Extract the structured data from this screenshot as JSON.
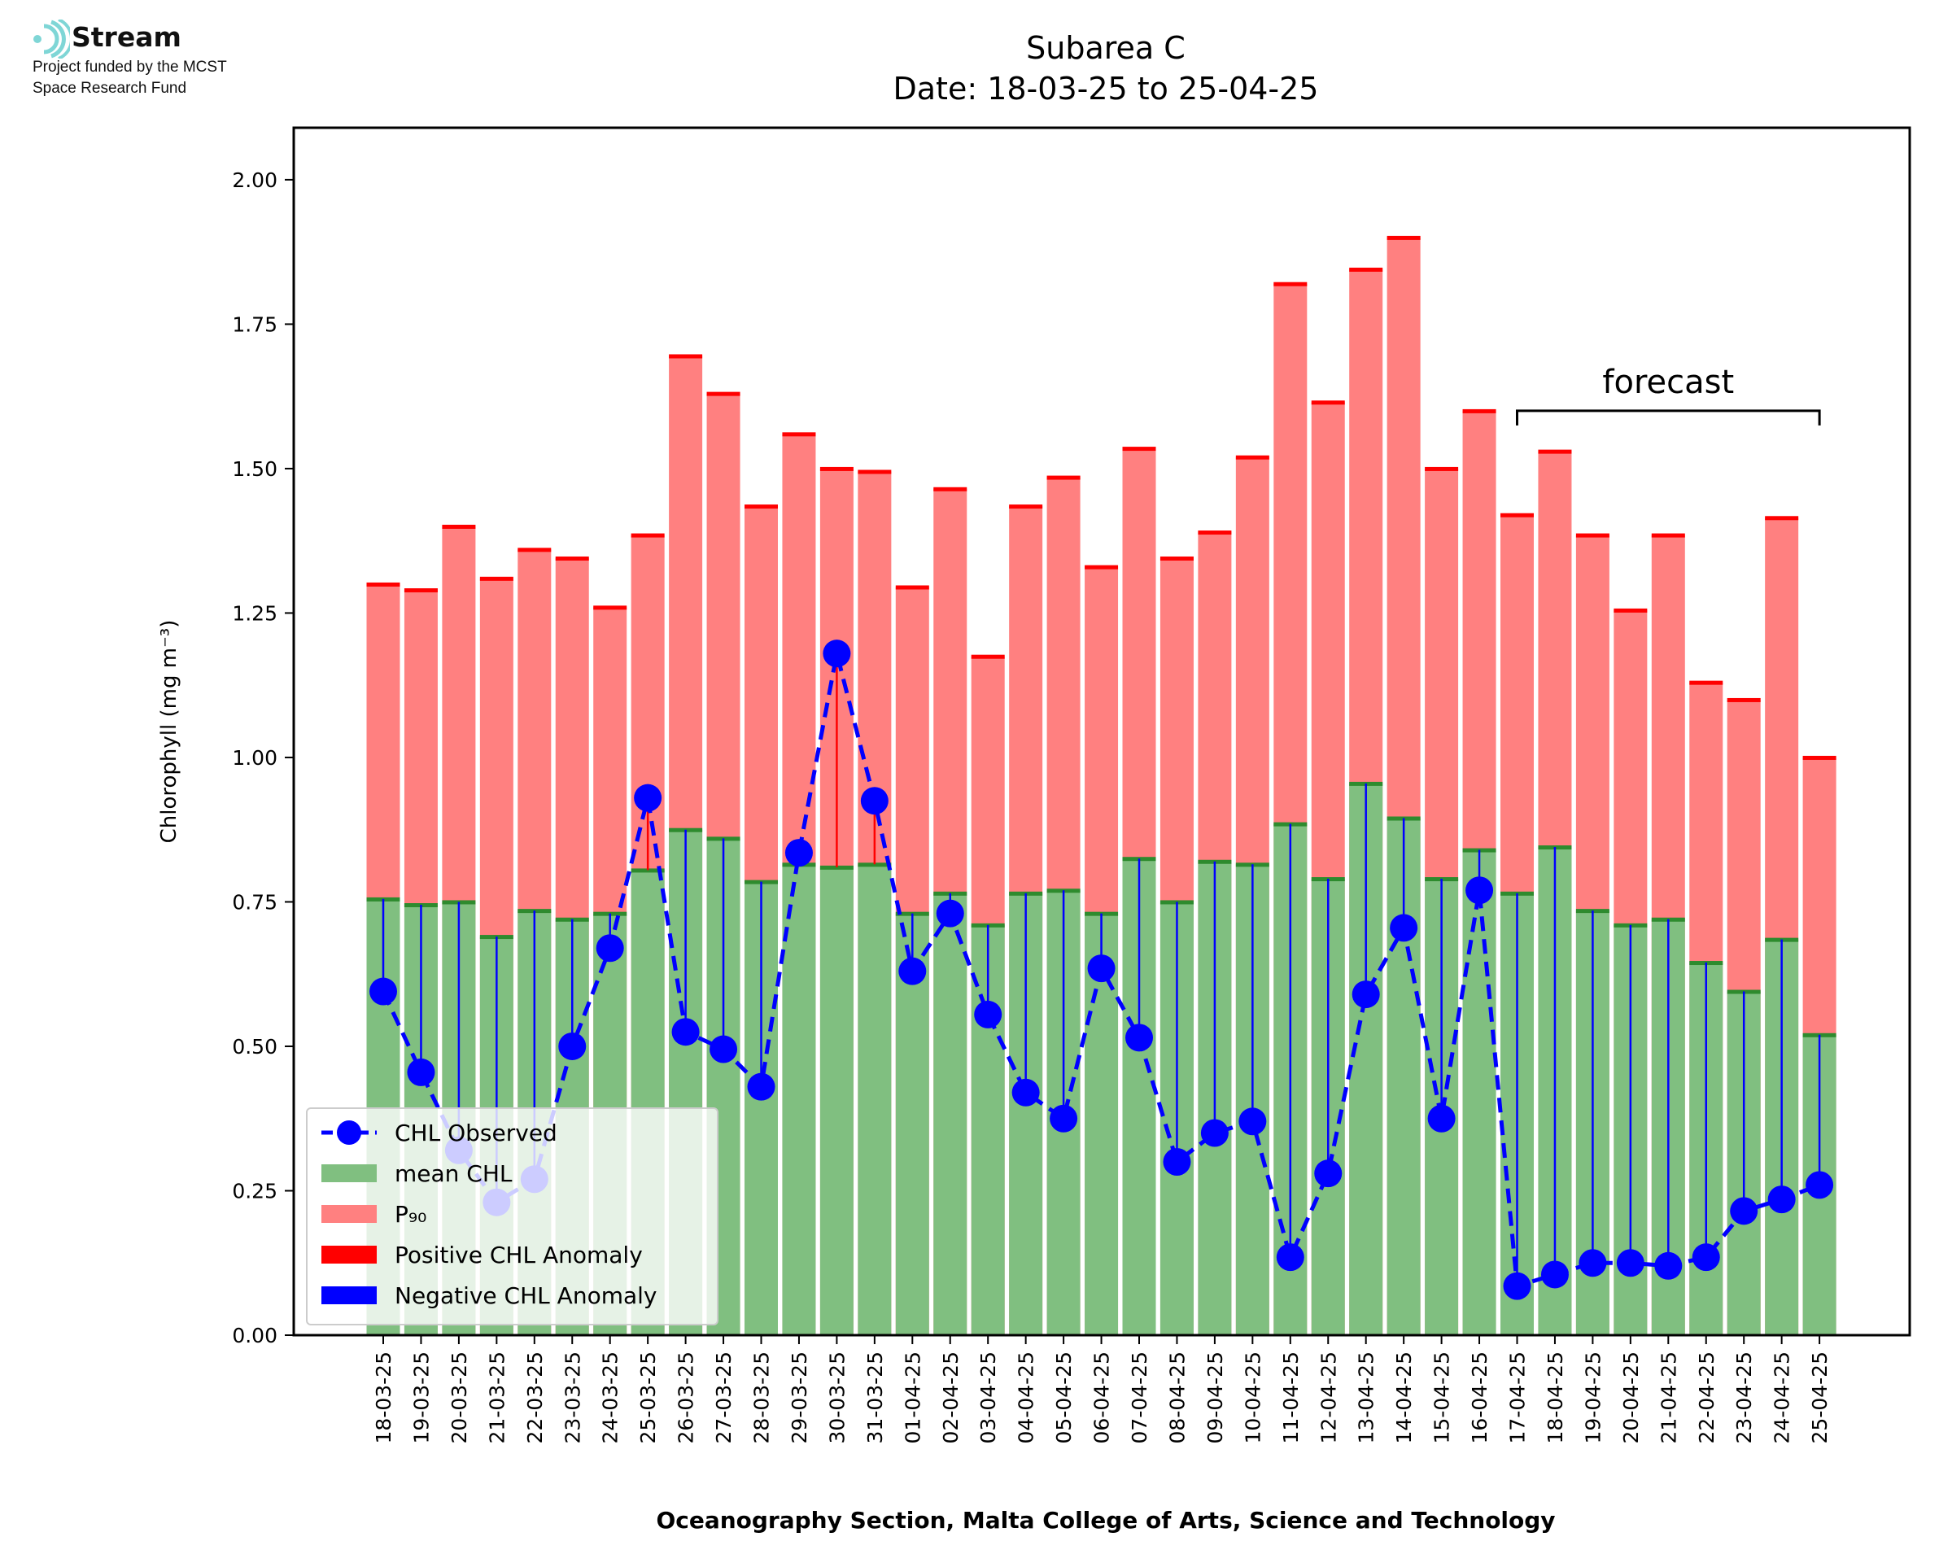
{
  "logo": {
    "name": "Stream",
    "line1": "Project funded by the MCST",
    "line2": "Space Research Fund"
  },
  "chart_data": {
    "type": "bar",
    "title": "Subarea C",
    "subtitle": "Date: 18-03-25 to 25-04-25",
    "xlabel": "Oceanography Section, Malta College of Arts, Science and Technology",
    "ylabel": "Chlorophyll (mg m⁻³)",
    "ylim": [
      0,
      2.09
    ],
    "yticks": [
      "0.00",
      "0.25",
      "0.50",
      "0.75",
      "1.00",
      "1.25",
      "1.50",
      "1.75",
      "2.00"
    ],
    "grid": false,
    "legend_position": "lower-left",
    "categories": [
      "18-03-25",
      "19-03-25",
      "20-03-25",
      "21-03-25",
      "22-03-25",
      "23-03-25",
      "24-03-25",
      "25-03-25",
      "26-03-25",
      "27-03-25",
      "28-03-25",
      "29-03-25",
      "30-03-25",
      "31-03-25",
      "01-04-25",
      "02-04-25",
      "03-04-25",
      "04-04-25",
      "05-04-25",
      "06-04-25",
      "07-04-25",
      "08-04-25",
      "09-04-25",
      "10-04-25",
      "11-04-25",
      "12-04-25",
      "13-04-25",
      "14-04-25",
      "15-04-25",
      "16-04-25",
      "17-04-25",
      "18-04-25",
      "19-04-25",
      "20-04-25",
      "21-04-25",
      "22-04-25",
      "23-04-25",
      "24-04-25",
      "25-04-25"
    ],
    "series": [
      {
        "name": "CHL Observed",
        "type": "line",
        "color": "#0000ff",
        "values": [
          0.595,
          0.455,
          0.32,
          0.23,
          0.27,
          0.5,
          0.67,
          0.93,
          0.525,
          0.495,
          0.43,
          0.835,
          1.18,
          0.925,
          0.63,
          0.73,
          0.555,
          0.42,
          0.375,
          0.635,
          0.515,
          0.3,
          0.35,
          0.37,
          0.135,
          0.28,
          0.59,
          0.705,
          0.375,
          0.77,
          0.085,
          0.105,
          0.125,
          0.125,
          0.12,
          0.135,
          0.215,
          0.235,
          0.26
        ]
      },
      {
        "name": "mean CHL",
        "type": "bar",
        "color": "#80bf80",
        "values": [
          0.755,
          0.745,
          0.75,
          0.69,
          0.735,
          0.72,
          0.73,
          0.805,
          0.875,
          0.86,
          0.785,
          0.815,
          0.81,
          0.815,
          0.73,
          0.765,
          0.71,
          0.765,
          0.77,
          0.73,
          0.825,
          0.75,
          0.82,
          0.815,
          0.885,
          0.79,
          0.955,
          0.895,
          0.79,
          0.84,
          0.765,
          0.845,
          0.735,
          0.71,
          0.72,
          0.645,
          0.595,
          0.685,
          0.52
        ]
      },
      {
        "name": "P₉₀",
        "type": "bar",
        "color": "#ff8080",
        "values": [
          1.3,
          1.29,
          1.4,
          1.31,
          1.36,
          1.345,
          1.26,
          1.385,
          1.695,
          1.63,
          1.435,
          1.56,
          1.5,
          1.495,
          1.295,
          1.465,
          1.175,
          1.435,
          1.485,
          1.33,
          1.535,
          1.345,
          1.39,
          1.52,
          1.82,
          1.615,
          1.845,
          1.9,
          1.5,
          1.6,
          1.42,
          1.53,
          1.385,
          1.255,
          1.385,
          1.13,
          1.1,
          1.415,
          1.0
        ]
      },
      {
        "name": "Positive CHL Anomaly",
        "type": "bar",
        "color": "#ff0000"
      },
      {
        "name": "Negative CHL Anomaly",
        "type": "bar",
        "color": "#0000ff"
      }
    ],
    "annotation": {
      "text": "forecast",
      "from": "17-04-25",
      "to": "25-04-25",
      "y": 1.6
    }
  }
}
